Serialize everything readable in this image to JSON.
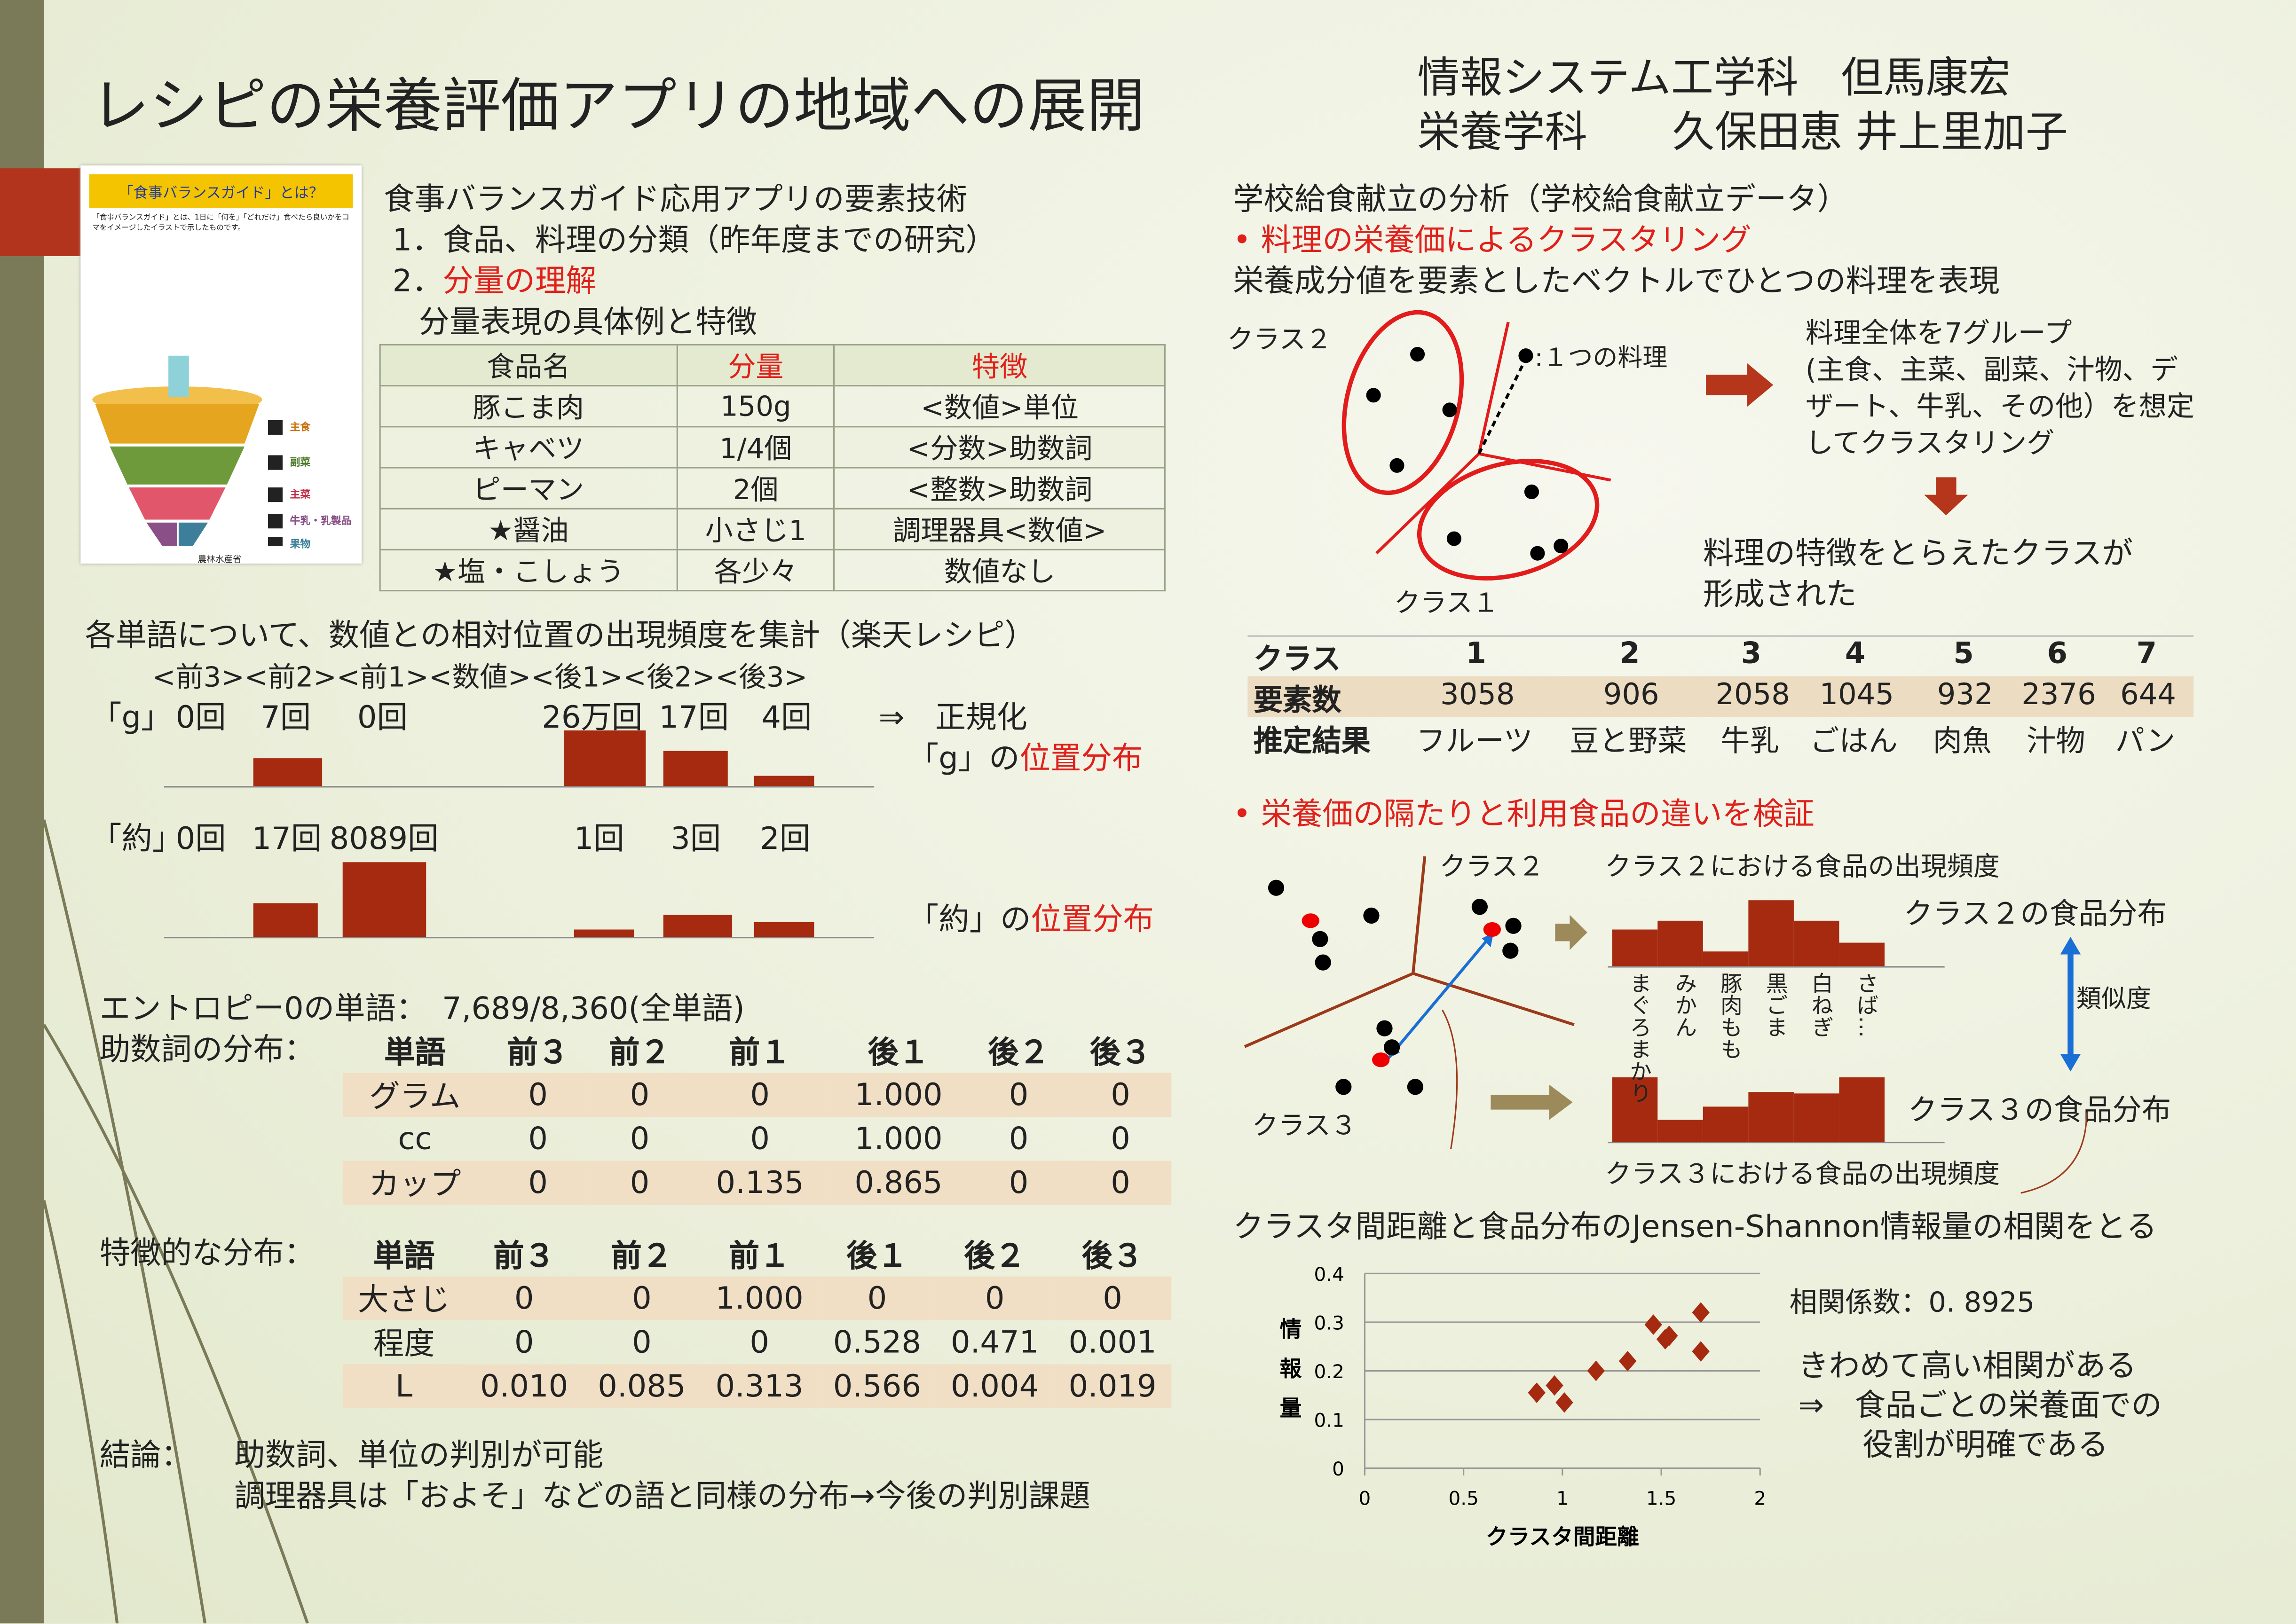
{
  "title": "レシピの栄養評価アプリの地域への展開",
  "authors": {
    "line1": "情報システム工学科　但馬康宏",
    "line2": "栄養学科　　久保田恵  井上里加子"
  },
  "guide_image": {
    "heading": "「食事バランスガイド」とは？",
    "body": "「食事バランスガイド」とは、1日に「何を」「どれだけ」食べたら良いかをコマをイメージしたイラストで示したものです。",
    "footer": "農林水産省",
    "groups": [
      "主食",
      "副菜",
      "主菜",
      "牛乳・乳製品",
      "果物"
    ],
    "colors": [
      "#e5a51e",
      "#6e9a3c",
      "#e1566a",
      "#8a4f86",
      "#3d7f9a"
    ]
  },
  "left": {
    "intro": [
      "食事バランスガイド応用アプリの要素技術",
      "1．食品、料理の分類（昨年度までの研究）",
      "2．",
      "分量の理解",
      "分量表現の具体例と特徴"
    ],
    "table1": {
      "headers": [
        "食品名",
        "分量",
        "特徴"
      ],
      "rows": [
        [
          "豚こま肉",
          "150g",
          "<数値>単位"
        ],
        [
          "キャベツ",
          "1/4個",
          "<分数>助数詞"
        ],
        [
          "ピーマン",
          "2個",
          "<整数>助数詞"
        ],
        [
          "★醤油",
          "小さじ1",
          "調理器具<数値>"
        ],
        [
          "★塩・こしょう",
          "各少々",
          "数値なし"
        ]
      ]
    },
    "freq_title": "各単語について、数値との相対位置の出現頻度を集計（楽天レシピ）",
    "positions": "<前3><前2><前1><数値><後1><後2><後3>",
    "g": {
      "label": "「g」",
      "counts": [
        "0回",
        "7回",
        "0回",
        "26万回",
        "17回",
        "4回"
      ],
      "arrow": "⇒　正規化",
      "caption_pre": "「g」の",
      "caption_red": "位置分布",
      "bars": [
        0,
        0.5,
        0,
        1.0,
        0.63,
        0.18
      ]
    },
    "yaku": {
      "label": "「約」",
      "counts": [
        "0回",
        "17回",
        "8089回",
        "1回",
        "3回",
        "2回"
      ],
      "caption_pre": "「約」の",
      "caption_red": "位置分布",
      "bars": [
        0,
        0.45,
        1.0,
        0.1,
        0.3,
        0.2
      ]
    },
    "entropy": "エントロピー0の単語：　7,689/8,360(全単語)",
    "josushi_label": "助数詞の分布：",
    "table2": {
      "headers": [
        "単語",
        "前３",
        "前２",
        "前１",
        "後１",
        "後２",
        "後３"
      ],
      "rows": [
        [
          "グラム",
          "0",
          "0",
          "0",
          "1.000",
          "0",
          "0"
        ],
        [
          "cc",
          "0",
          "0",
          "0",
          "1.000",
          "0",
          "0"
        ],
        [
          "カップ",
          "0",
          "0",
          "0.135",
          "0.865",
          "0",
          "0"
        ]
      ]
    },
    "tokucho_label": "特徴的な分布：",
    "table3": {
      "headers": [
        "単語",
        "前３",
        "前２",
        "前１",
        "後１",
        "後２",
        "後３"
      ],
      "rows": [
        [
          "大さじ",
          "0",
          "0",
          "1.000",
          "0",
          "0",
          "0"
        ],
        [
          "程度",
          "0",
          "0",
          "0",
          "0.528",
          "0.471",
          "0.001"
        ],
        [
          "L",
          "0.010",
          "0.085",
          "0.313",
          "0.566",
          "0.004",
          "0.019"
        ]
      ]
    },
    "conclusion_label": "結論：",
    "conclusion": [
      "助数詞、単位の判別が可能",
      "調理器具は「およそ」などの語と同様の分布→今後の判別課題"
    ]
  },
  "right": {
    "lines": [
      "学校給食献立の分析（学校給食献立データ）",
      "料理の栄養価によるクラスタリング",
      "栄養成分値を要素としたベクトルでひとつの料理を表現"
    ],
    "cluster": {
      "class2": "クラス２",
      "class1": "クラス１",
      "dish": ":１つの料理"
    },
    "grouping": [
      "料理全体を7グループ",
      "(主食、主菜、副菜、汁物、デ",
      "ザート、牛乳、その他）を想定",
      "してクラスタリング"
    ],
    "result": [
      "料理の特徴をとらえたクラスが",
      "形成された"
    ],
    "class_table": {
      "labels": [
        "クラス",
        "要素数",
        "推定結果"
      ],
      "classes": [
        "1",
        "2",
        "3",
        "4",
        "5",
        "6",
        "7"
      ],
      "counts": [
        "3058",
        "906",
        "2058",
        "1045",
        "932",
        "2376",
        "644"
      ],
      "names": [
        "フルーツ",
        "豆と野菜",
        "牛乳",
        "ごはん",
        "肉魚",
        "汁物",
        "パン"
      ]
    },
    "verify": "栄養価の隔たりと利用食品の違いを検証",
    "diag": {
      "class2": "クラス２",
      "class3": "クラス３",
      "freq2": "クラス２における食品の出現頻度",
      "freq3": "クラス３における食品の出現頻度",
      "dist2": "クラス２の食品分布",
      "dist3": "クラス３の食品分布",
      "similarity": "類似度",
      "foods": [
        "まぐろまかり",
        "みかん",
        "豚肉もも",
        "黒ごま",
        "白ねぎ",
        "さば…"
      ],
      "bars2": [
        0.55,
        0.7,
        0.22,
        1.0,
        0.7,
        0.35
      ],
      "bars3": [
        1.0,
        0.35,
        0.55,
        0.78,
        0.75,
        1.0
      ]
    },
    "correlation_line": "クラスタ間距離と食品分布のJensen-Shannon情報量の相関をとる",
    "corr": "相関係数：0. 8925",
    "conc": [
      "きわめて高い相関がある",
      "⇒　食品ごとの栄養面での",
      "役割が明確である"
    ]
  },
  "chart_data": {
    "type": "scatter",
    "title": "",
    "xlabel": "クラスタ間距離",
    "ylabel": "情報量",
    "xlim": [
      0,
      2
    ],
    "ylim": [
      0,
      0.4
    ],
    "xticks": [
      "0",
      "0.5",
      "1",
      "1.5",
      "2"
    ],
    "yticks": [
      "0",
      "0.1",
      "0.2",
      "0.3",
      "0.4"
    ],
    "grid": true,
    "color": "#a52a0f",
    "points": [
      [
        0.87,
        0.155
      ],
      [
        0.96,
        0.17
      ],
      [
        1.01,
        0.135
      ],
      [
        1.17,
        0.2
      ],
      [
        1.33,
        0.22
      ],
      [
        1.46,
        0.295
      ],
      [
        1.52,
        0.265
      ],
      [
        1.54,
        0.272
      ],
      [
        1.7,
        0.32
      ],
      [
        1.7,
        0.24
      ]
    ]
  }
}
